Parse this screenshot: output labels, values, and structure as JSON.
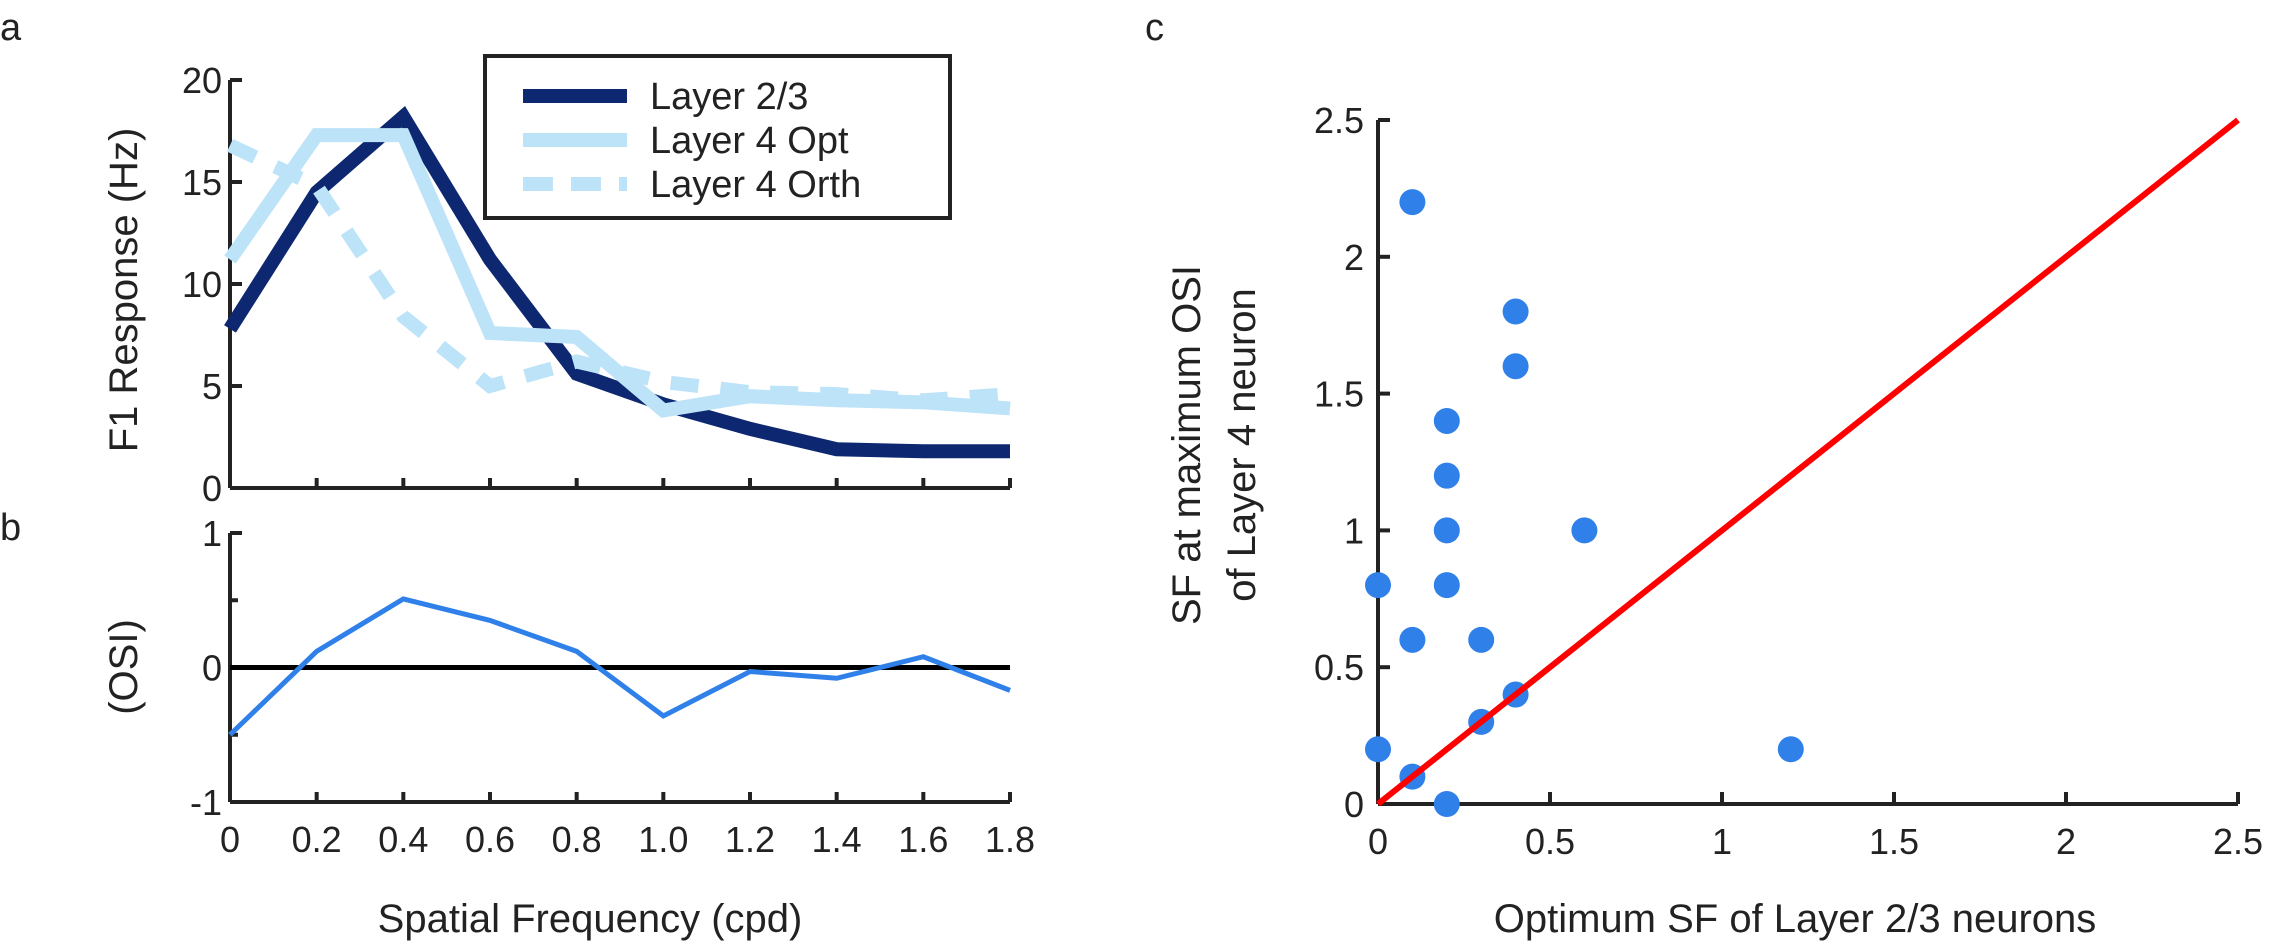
{
  "panel_labels": [
    "a",
    "b",
    "c"
  ],
  "chart_data": [
    {
      "id": "a",
      "type": "line",
      "ylabel": "F1 Response (Hz)",
      "xlabel": "",
      "x": [
        0,
        0.2,
        0.4,
        0.6,
        0.8,
        1.0,
        1.2,
        1.4,
        1.6,
        1.8
      ],
      "xlim": [
        0,
        1.8
      ],
      "ylim": [
        0,
        20
      ],
      "y_ticks": [
        0,
        5,
        10,
        15,
        20
      ],
      "legend": "top-right",
      "series": [
        {
          "name": "Layer 2/3",
          "color": "#0d2770",
          "dash": "solid",
          "values": [
            7.8,
            14.5,
            18.2,
            11.2,
            5.6,
            4.1,
            2.9,
            1.9,
            1.8,
            1.8
          ]
        },
        {
          "name": "Layer 4 Opt",
          "color": "#bde3f8",
          "dash": "solid",
          "values": [
            11.2,
            17.3,
            17.3,
            7.6,
            7.4,
            3.8,
            4.5,
            4.3,
            4.2,
            3.9
          ]
        },
        {
          "name": "Layer 4 Orth",
          "color": "#bde3f8",
          "dash": "dashed",
          "values": [
            16.8,
            14.8,
            8.4,
            5.0,
            6.2,
            5.2,
            4.7,
            4.6,
            4.3,
            4.6
          ]
        }
      ]
    },
    {
      "id": "b",
      "type": "line",
      "ylabel": "(OSI)",
      "xlabel": "Spatial Frequency (cpd)",
      "x": [
        0,
        0.2,
        0.4,
        0.6,
        0.8,
        1.0,
        1.2,
        1.4,
        1.6,
        1.8
      ],
      "x_tick_labels": [
        "0",
        "0.2",
        "0.4",
        "0.6",
        "0.8",
        "1.0",
        "1.2",
        "1.4",
        "1.6",
        "1.8"
      ],
      "xlim": [
        0,
        1.8
      ],
      "ylim": [
        -1,
        1
      ],
      "y_ticks": [
        -1,
        0,
        1
      ],
      "reference_line": 0,
      "series": [
        {
          "color": "#2f80e8",
          "values": [
            -0.5,
            0.12,
            0.51,
            0.35,
            0.12,
            -0.36,
            -0.03,
            -0.08,
            0.08,
            -0.17
          ]
        }
      ]
    },
    {
      "id": "c",
      "type": "scatter",
      "xlabel": "Optimum SF of Layer 2/3 neurons",
      "ylabel_lines": [
        "SF at maximum OSI",
        "of Layer 4 neuron"
      ],
      "xlim": [
        0,
        2.5
      ],
      "ylim": [
        0,
        2.5
      ],
      "x_ticks": [
        0,
        0.5,
        1,
        1.5,
        2,
        2.5
      ],
      "y_ticks": [
        0,
        0.5,
        1,
        1.5,
        2,
        2.5
      ],
      "point_color": "#2f80e8",
      "identity_line_color": "#ff0000",
      "points": [
        [
          0,
          0.2
        ],
        [
          0,
          0.8
        ],
        [
          0.1,
          0.1
        ],
        [
          0.1,
          0.6
        ],
        [
          0.1,
          2.2
        ],
        [
          0.2,
          0
        ],
        [
          0.2,
          0.8
        ],
        [
          0.2,
          1.0
        ],
        [
          0.2,
          1.2
        ],
        [
          0.2,
          1.4
        ],
        [
          0.3,
          0.3
        ],
        [
          0.3,
          0.6
        ],
        [
          0.4,
          0.4
        ],
        [
          0.4,
          1.6
        ],
        [
          0.4,
          1.8
        ],
        [
          0.6,
          1.0
        ],
        [
          1.2,
          0.2
        ]
      ]
    }
  ]
}
